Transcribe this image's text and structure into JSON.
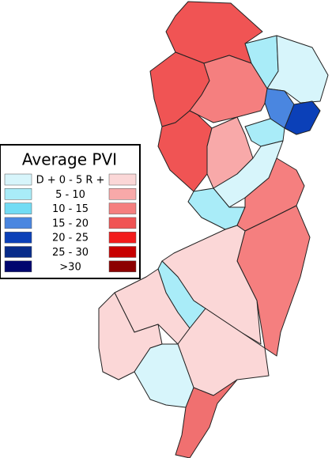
{
  "legend": {
    "title": "Average PVI",
    "rows": [
      {
        "label": "D + 0  -  5  R +",
        "d_color": "#d7f5fb",
        "r_color": "#fbd7d7"
      },
      {
        "label": "5  -  10",
        "d_color": "#a9ecf8",
        "r_color": "#f8a9a9"
      },
      {
        "label": "10 - 15",
        "d_color": "#72dcf4",
        "r_color": "#f57f7f"
      },
      {
        "label": "15 - 20",
        "d_color": "#4a86e0",
        "r_color": "#f05454"
      },
      {
        "label": "20 - 25",
        "d_color": "#0b40b8",
        "r_color": "#f21c1c"
      },
      {
        "label": "25 - 30",
        "d_color": "#082c8a",
        "r_color": "#c80000"
      },
      {
        "label": ">30",
        "d_color": "#00066e",
        "r_color": "#8c0000"
      }
    ]
  }
}
